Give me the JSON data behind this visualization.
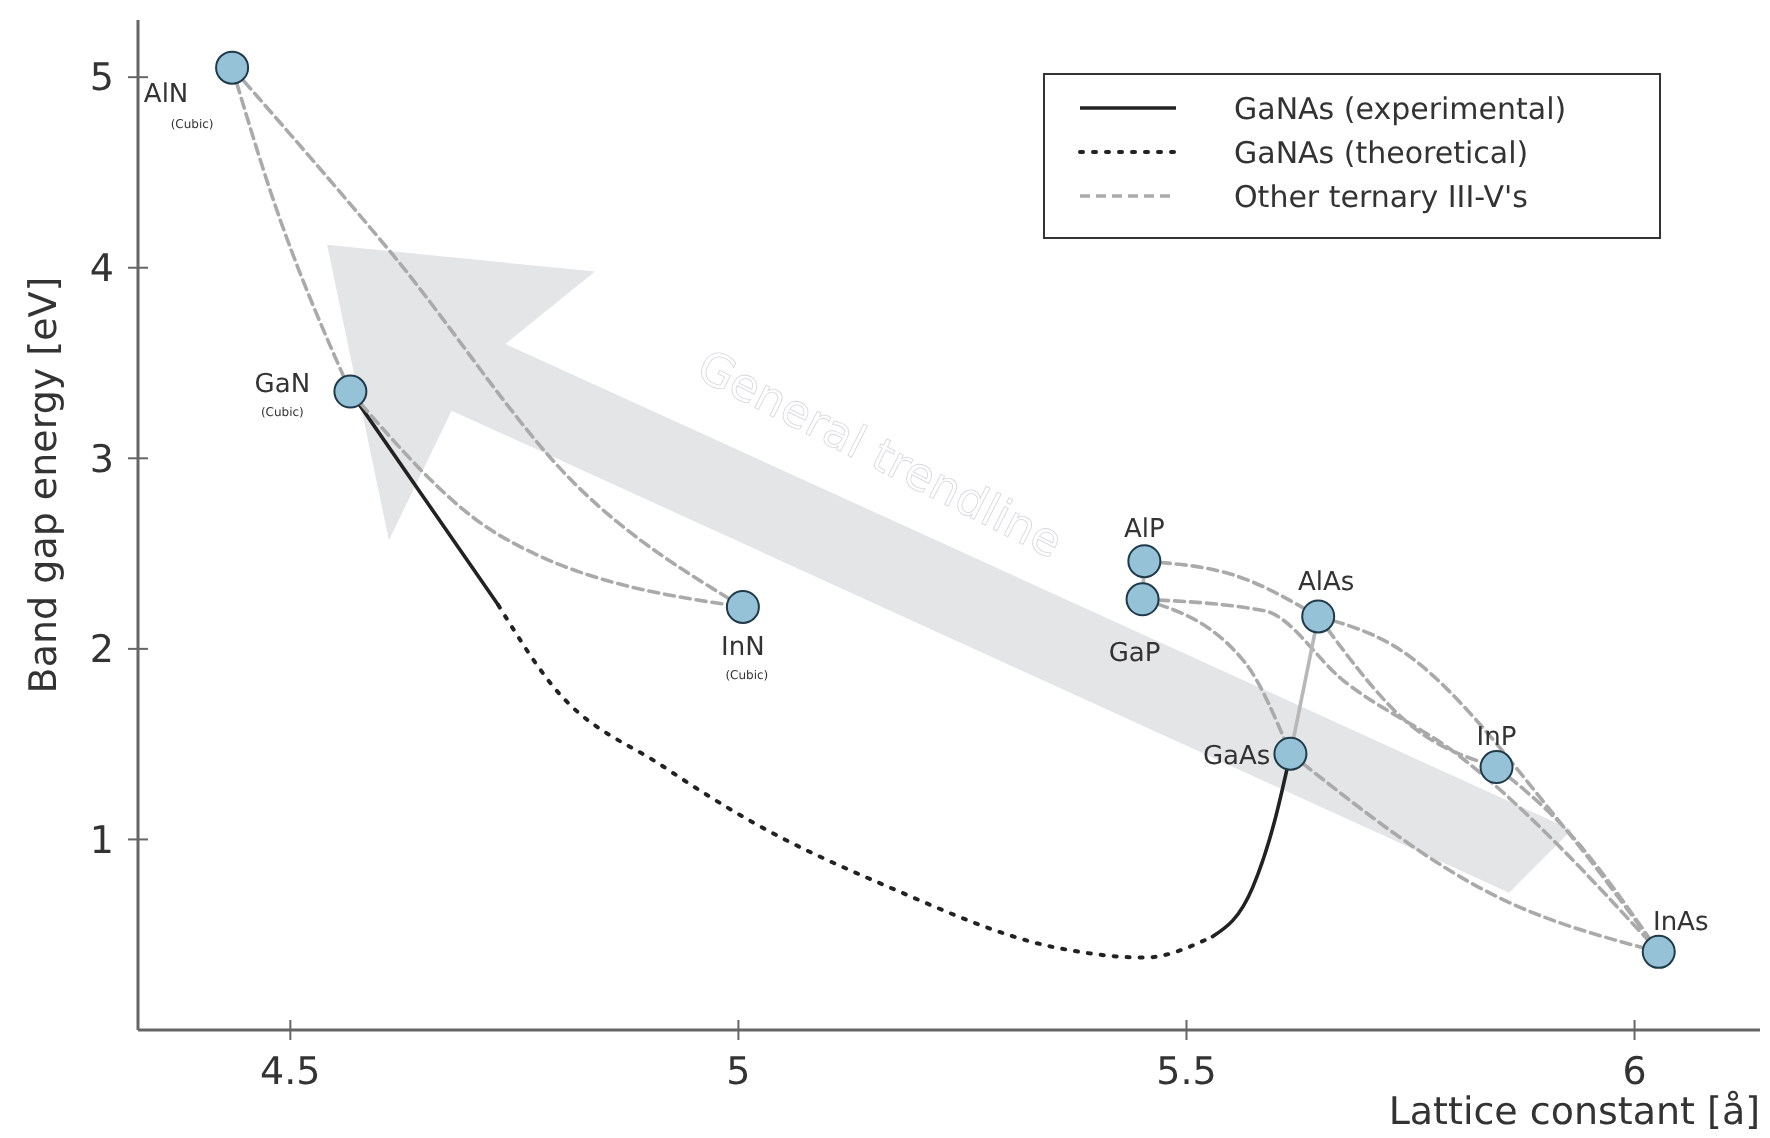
{
  "chart_data": {
    "type": "line",
    "xlabel": "Lattice constant [å]",
    "ylabel": "Band gap energy [eV]",
    "xlim": [
      4.33,
      6.14
    ],
    "ylim": [
      0,
      5.3
    ],
    "xticks": [
      4.5,
      5,
      5.5,
      6
    ],
    "yticks": [
      1,
      2,
      3,
      4,
      5
    ],
    "grid": false,
    "legend": "top right",
    "series": [
      {
        "name": "GaNAs (experimental)",
        "line_style": "solid",
        "color": "#222222",
        "x": [
          4.567,
          4.732,
          null,
          5.529,
          5.574,
          5.598,
          5.616
        ],
        "values": [
          3.35,
          2.23,
          null,
          0.49,
          0.75,
          1.09,
          1.45
        ]
      },
      {
        "name": "GaNAs (theoretical)",
        "line_style": "dotted",
        "color": "#222222",
        "x": [
          4.732,
          4.792,
          4.917,
          5.016,
          5.163,
          5.357,
          5.453,
          5.529
        ],
        "values": [
          2.23,
          1.81,
          1.38,
          1.09,
          0.76,
          0.43,
          0.38,
          0.49
        ]
      },
      {
        "name": "Other ternary III-V's",
        "line_style": "dashed",
        "color": "#aaaaaa",
        "x": [
          4.435,
          4.48,
          4.567,
          null,
          4.567,
          4.732,
          5.005,
          null,
          5.453,
          5.551,
          5.647,
          null,
          5.647,
          5.73,
          5.922,
          6.027,
          null,
          5.451,
          5.565,
          5.616,
          null,
          5.451,
          5.587,
          5.676,
          5.804,
          6.027,
          null,
          5.647,
          5.75,
          5.846,
          null,
          5.846,
          5.922,
          6.027,
          null,
          5.616,
          5.842,
          6.027,
          null,
          5.005,
          4.821,
          4.614,
          4.435
        ],
        "values": [
          5.05,
          4.37,
          3.35,
          null,
          3.35,
          2.6,
          2.22,
          null,
          2.46,
          2.39,
          2.17,
          null,
          2.17,
          2.02,
          1.06,
          0.41,
          null,
          2.26,
          1.93,
          1.45,
          null,
          2.26,
          2.2,
          1.83,
          1.44,
          0.41,
          null,
          2.17,
          1.6,
          1.38,
          null,
          1.38,
          1.06,
          0.41,
          null,
          1.45,
          0.71,
          0.41,
          null,
          2.22,
          2.85,
          4.07,
          5.05
        ]
      },
      {
        "line_style": "solid",
        "color": "#b8b8b8",
        "x": [
          5.453,
          5.451,
          null,
          5.647,
          5.616
        ],
        "values": [
          2.46,
          2.26,
          null,
          2.17,
          1.45
        ]
      },
      {
        "type": "scatter",
        "marker": "circle",
        "color": "#96c2d8",
        "x": [
          4.435,
          4.567,
          5.005,
          5.453,
          5.451,
          5.647,
          5.616,
          5.846,
          6.027
        ],
        "values": [
          5.05,
          3.35,
          2.22,
          2.46,
          2.26,
          2.17,
          1.45,
          1.38,
          0.41
        ]
      }
    ],
    "annotations": [
      {
        "text": "AlN",
        "x": 4.435,
        "y": 5.05
      },
      "(Cubic)",
      {
        "text": "GaN",
        "x": 4.567,
        "y": 3.35
      },
      "(Cubic)",
      {
        "text": "InN",
        "x": 5.005,
        "y": 2.22
      },
      "(Cubic)",
      {
        "text": "AlP",
        "x": 5.453,
        "y": 2.46
      },
      {
        "text": "GaP",
        "x": 5.451,
        "y": 2.26
      },
      {
        "text": "AlAs",
        "x": 5.647,
        "y": 2.17
      },
      {
        "text": "GaAs",
        "x": 5.616,
        "y": 1.45
      },
      {
        "text": "InP",
        "x": 5.846,
        "y": 1.38
      },
      {
        "text": "InAs",
        "x": 6.027,
        "y": 0.41
      },
      "General trendline"
    ]
  }
}
